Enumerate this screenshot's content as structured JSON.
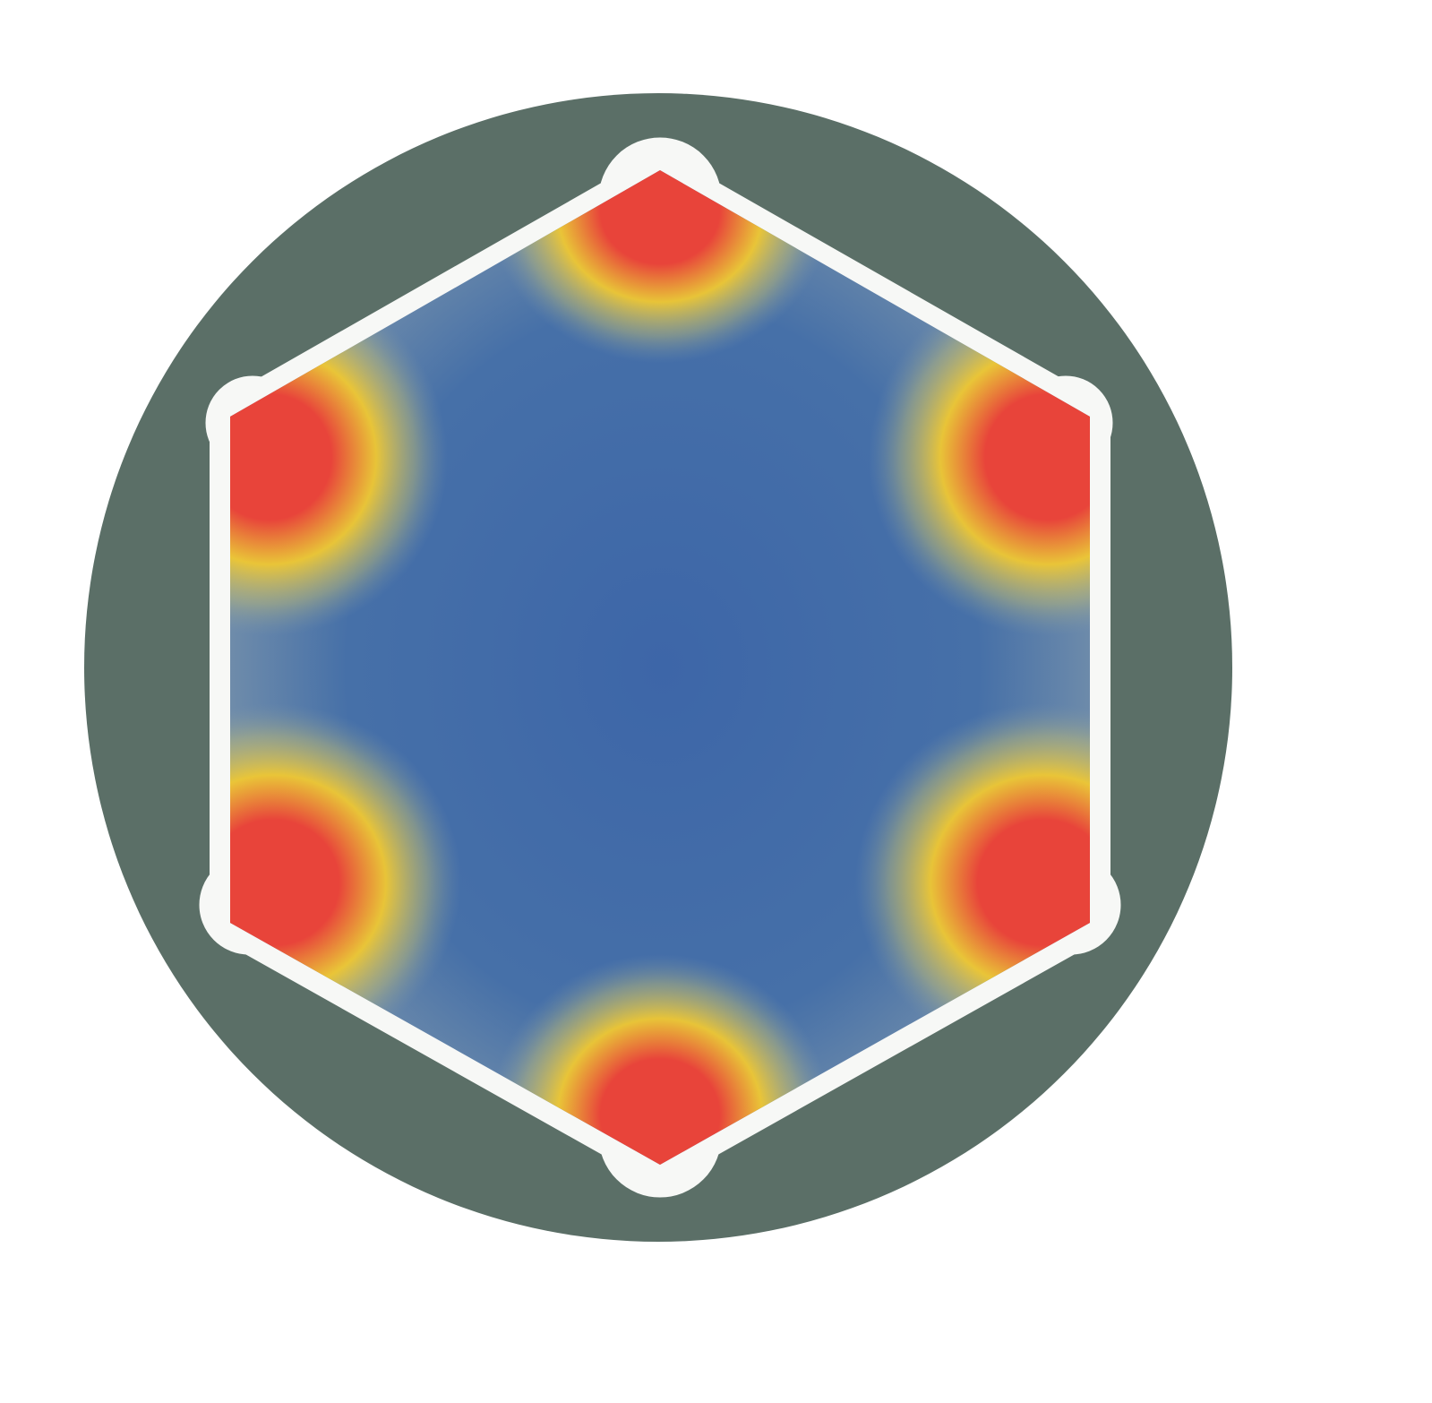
{
  "figure": {
    "colors": {
      "background": "#ffffff",
      "outer_disc": "#5b6f67",
      "gap_outline": "#f7f8f6",
      "low_field": "#3f68a6",
      "mid_field": "#f0c832",
      "high_field": "#e8443a"
    },
    "hotspot_count": 6
  }
}
